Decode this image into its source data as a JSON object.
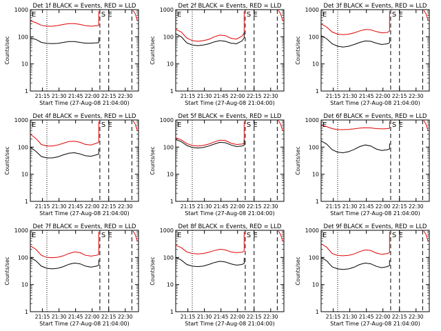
{
  "figure": {
    "background": "#ffffff",
    "black_color": "#000000",
    "red_color": "#e00000"
  },
  "common": {
    "ylabel": "Counts/sec",
    "xlabel": "Start Time (27-Aug-08 21:04:00)",
    "xticks": [
      "21:15",
      "21:30",
      "21:45",
      "22:00",
      "22:15",
      "22:30"
    ],
    "yticks": [
      "1",
      "10",
      "100",
      "1000"
    ],
    "marker_E": "E",
    "marker_SE": "S E"
  },
  "chart_data": [
    {
      "type": "line",
      "title": "Det 1f BLACK = Events, RED = LLD",
      "ylim": [
        1,
        1000
      ],
      "yscale": "log",
      "x_unit": "minutes after 21:04",
      "series": [
        {
          "name": "Events",
          "color": "#000000",
          "x": [
            0,
            5,
            10,
            15,
            20,
            25,
            30,
            35,
            40,
            45,
            50,
            55,
            60,
            62
          ],
          "values": [
            90,
            80,
            62,
            57,
            56,
            57,
            62,
            67,
            67,
            62,
            58,
            58,
            60,
            60
          ]
        },
        {
          "name": "LLD",
          "color": "#e00000",
          "x": [
            0,
            5,
            10,
            15,
            20,
            25,
            30,
            35,
            40,
            45,
            50,
            55,
            60,
            62
          ],
          "values": [
            390,
            330,
            265,
            245,
            245,
            260,
            285,
            305,
            305,
            285,
            255,
            245,
            255,
            260
          ]
        }
      ]
    },
    {
      "type": "line",
      "title": "Det 2f BLACK = Events, RED = LLD",
      "ylim": [
        1,
        1000
      ],
      "yscale": "log",
      "x_unit": "minutes after 21:04",
      "series": [
        {
          "name": "Events",
          "color": "#000000",
          "x": [
            0,
            5,
            10,
            15,
            20,
            25,
            30,
            35,
            40,
            45,
            50,
            55,
            60,
            62
          ],
          "values": [
            130,
            100,
            60,
            50,
            47,
            50,
            55,
            65,
            72,
            68,
            58,
            55,
            70,
            90
          ]
        },
        {
          "name": "LLD",
          "color": "#e00000",
          "x": [
            0,
            5,
            10,
            15,
            20,
            25,
            30,
            35,
            40,
            45,
            50,
            55,
            60,
            62
          ],
          "values": [
            190,
            150,
            90,
            72,
            68,
            72,
            80,
            100,
            115,
            110,
            88,
            82,
            105,
            135
          ]
        }
      ]
    },
    {
      "type": "line",
      "title": "Det 3f BLACK = Events, RED = LLD",
      "ylim": [
        1,
        1000
      ],
      "yscale": "log",
      "x_unit": "minutes after 21:04",
      "series": [
        {
          "name": "Events",
          "color": "#000000",
          "x": [
            0,
            5,
            10,
            15,
            20,
            25,
            30,
            35,
            40,
            45,
            50,
            55,
            60,
            62
          ],
          "values": [
            110,
            85,
            55,
            45,
            42,
            45,
            52,
            62,
            70,
            68,
            58,
            52,
            55,
            60
          ]
        },
        {
          "name": "LLD",
          "color": "#e00000",
          "x": [
            0,
            5,
            10,
            15,
            20,
            25,
            30,
            35,
            40,
            45,
            50,
            55,
            60,
            62
          ],
          "values": [
            300,
            230,
            150,
            125,
            120,
            125,
            140,
            165,
            185,
            180,
            155,
            140,
            145,
            160
          ]
        }
      ]
    },
    {
      "type": "line",
      "title": "Det 4f BLACK = Events, RED = LLD",
      "ylim": [
        1,
        1000
      ],
      "yscale": "log",
      "x_unit": "minutes after 21:04",
      "series": [
        {
          "name": "Events",
          "color": "#000000",
          "x": [
            0,
            5,
            10,
            15,
            20,
            25,
            30,
            35,
            40,
            45,
            50,
            55,
            60,
            62
          ],
          "values": [
            100,
            70,
            45,
            40,
            40,
            44,
            52,
            60,
            62,
            56,
            48,
            46,
            52,
            55
          ]
        },
        {
          "name": "LLD",
          "color": "#e00000",
          "x": [
            0,
            5,
            10,
            15,
            20,
            25,
            30,
            35,
            40,
            45,
            50,
            55,
            60,
            62
          ],
          "values": [
            300,
            210,
            125,
            110,
            110,
            120,
            140,
            160,
            165,
            150,
            125,
            120,
            140,
            150
          ]
        }
      ]
    },
    {
      "type": "line",
      "title": "Det 5f BLACK = Events, RED = LLD",
      "ylim": [
        1,
        1000
      ],
      "yscale": "log",
      "x_unit": "minutes after 21:04",
      "series": [
        {
          "name": "Events",
          "color": "#000000",
          "x": [
            0,
            5,
            10,
            15,
            20,
            25,
            30,
            35,
            40,
            45,
            50,
            55,
            60,
            62
          ],
          "values": [
            190,
            160,
            115,
            97,
            93,
            97,
            110,
            130,
            150,
            145,
            120,
            105,
            110,
            115
          ]
        },
        {
          "name": "LLD",
          "color": "#e00000",
          "x": [
            0,
            5,
            10,
            15,
            20,
            25,
            30,
            35,
            40,
            45,
            50,
            55,
            60,
            62
          ],
          "values": [
            220,
            185,
            135,
            115,
            110,
            115,
            130,
            155,
            180,
            175,
            140,
            125,
            130,
            135
          ]
        }
      ]
    },
    {
      "type": "line",
      "title": "Det 6f BLACK = Events, RED = LLD",
      "ylim": [
        1,
        1000
      ],
      "yscale": "log",
      "x_unit": "minutes after 21:04",
      "series": [
        {
          "name": "Events",
          "color": "#000000",
          "x": [
            0,
            5,
            10,
            15,
            20,
            25,
            30,
            35,
            40,
            45,
            50,
            55,
            60,
            62
          ],
          "values": [
            170,
            130,
            80,
            65,
            62,
            68,
            82,
            105,
            120,
            110,
            85,
            75,
            80,
            85
          ]
        },
        {
          "name": "LLD",
          "color": "#e00000",
          "x": [
            0,
            5,
            10,
            15,
            20,
            25,
            30,
            35,
            40,
            45,
            50,
            55,
            60,
            62
          ],
          "values": [
            650,
            570,
            480,
            440,
            440,
            450,
            470,
            500,
            520,
            510,
            480,
            470,
            480,
            490
          ]
        }
      ]
    },
    {
      "type": "line",
      "title": "Det 7f BLACK = Events, RED = LLD",
      "ylim": [
        1,
        1000
      ],
      "yscale": "log",
      "x_unit": "minutes after 21:04",
      "series": [
        {
          "name": "Events",
          "color": "#000000",
          "x": [
            0,
            5,
            10,
            15,
            20,
            25,
            30,
            35,
            40,
            45,
            50,
            55,
            60,
            62
          ],
          "values": [
            100,
            75,
            48,
            40,
            38,
            40,
            46,
            56,
            62,
            58,
            48,
            44,
            48,
            52
          ]
        },
        {
          "name": "LLD",
          "color": "#e00000",
          "x": [
            0,
            5,
            10,
            15,
            20,
            25,
            30,
            35,
            40,
            45,
            50,
            55,
            60,
            62
          ],
          "values": [
            270,
            200,
            120,
            100,
            98,
            102,
            115,
            140,
            160,
            150,
            120,
            112,
            120,
            130
          ]
        }
      ]
    },
    {
      "type": "line",
      "title": "Det 8f BLACK = Events, RED = LLD",
      "ylim": [
        1,
        1000
      ],
      "yscale": "log",
      "x_unit": "minutes after 21:04",
      "series": [
        {
          "name": "Events",
          "color": "#000000",
          "x": [
            0,
            5,
            10,
            15,
            20,
            25,
            30,
            35,
            40,
            45,
            50,
            55,
            60,
            62
          ],
          "values": [
            100,
            80,
            55,
            48,
            46,
            48,
            55,
            65,
            72,
            68,
            58,
            52,
            55,
            60
          ]
        },
        {
          "name": "LLD",
          "color": "#e00000",
          "x": [
            0,
            5,
            10,
            15,
            20,
            25,
            30,
            35,
            40,
            45,
            50,
            55,
            60,
            62
          ],
          "values": [
            280,
            230,
            160,
            140,
            135,
            140,
            155,
            180,
            200,
            190,
            160,
            150,
            155,
            170
          ]
        }
      ]
    },
    {
      "type": "line",
      "title": "Det 9f BLACK = Events, RED = LLD",
      "ylim": [
        1,
        1000
      ],
      "yscale": "log",
      "x_unit": "minutes after 21:04",
      "series": [
        {
          "name": "Events",
          "color": "#000000",
          "x": [
            0,
            5,
            10,
            15,
            20,
            25,
            30,
            35,
            40,
            45,
            50,
            55,
            60,
            62
          ],
          "values": [
            100,
            75,
            45,
            38,
            36,
            38,
            44,
            55,
            62,
            58,
            47,
            42,
            46,
            50
          ]
        },
        {
          "name": "LLD",
          "color": "#e00000",
          "x": [
            0,
            5,
            10,
            15,
            20,
            25,
            30,
            35,
            40,
            45,
            50,
            55,
            60,
            62
          ],
          "values": [
            320,
            240,
            140,
            118,
            115,
            120,
            135,
            165,
            190,
            180,
            145,
            130,
            140,
            150
          ]
        }
      ]
    }
  ]
}
